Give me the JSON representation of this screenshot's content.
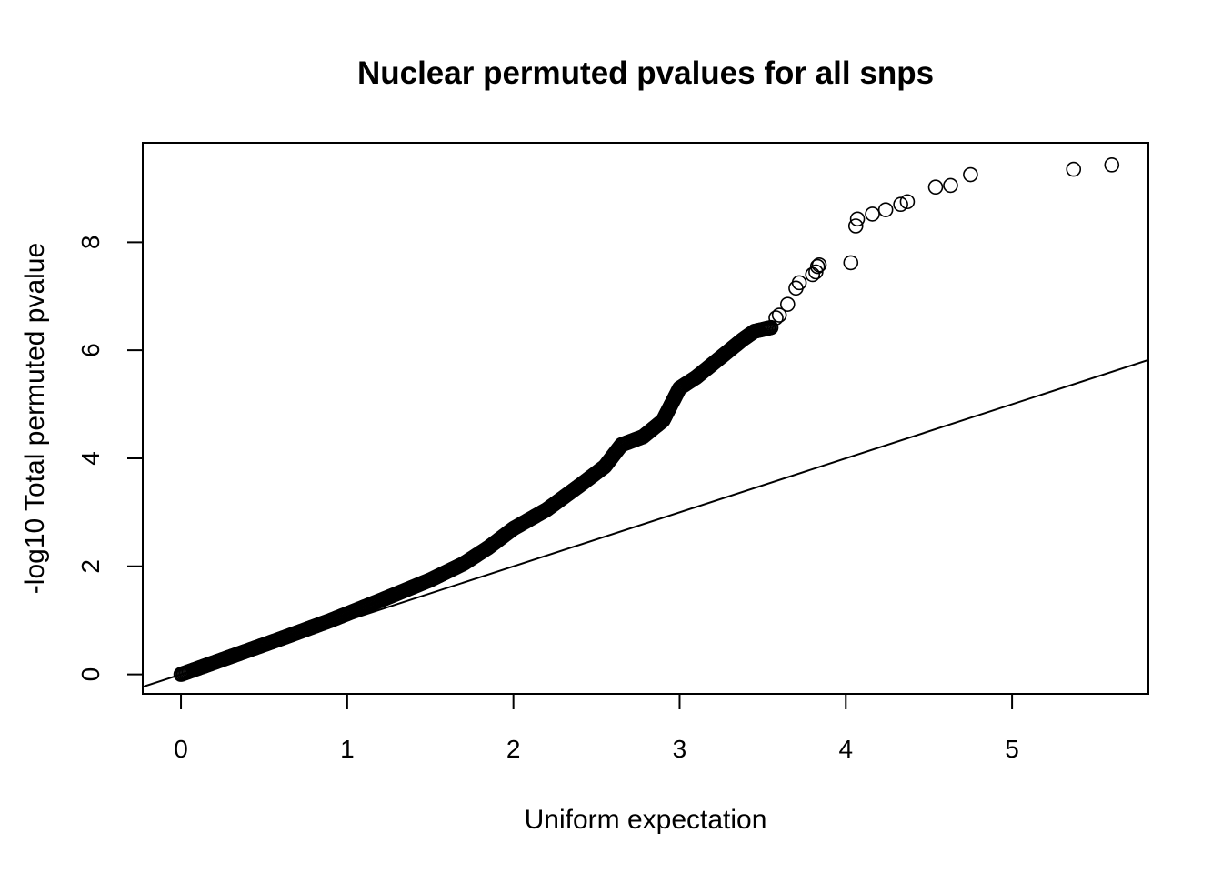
{
  "chart_data": {
    "type": "scatter",
    "title": "Nuclear permuted pvalues for all snps",
    "xlabel": "Uniform expectation",
    "ylabel": "-log10 Total permuted pvalue",
    "xlim": [
      -0.23,
      5.82
    ],
    "ylim": [
      -0.36,
      9.84
    ],
    "x_ticks": [
      0,
      1,
      2,
      3,
      4,
      5
    ],
    "y_ticks": [
      0,
      2,
      4,
      6,
      8
    ],
    "grid": false,
    "legend": "none",
    "reference_line": {
      "slope": 1,
      "intercept": 0
    },
    "curve_nodes": [
      [
        0.0,
        0.0
      ],
      [
        0.3,
        0.33
      ],
      [
        0.6,
        0.66
      ],
      [
        0.9,
        1.0
      ],
      [
        1.2,
        1.37
      ],
      [
        1.5,
        1.75
      ],
      [
        1.7,
        2.05
      ],
      [
        1.85,
        2.35
      ],
      [
        2.0,
        2.7
      ],
      [
        2.2,
        3.05
      ],
      [
        2.4,
        3.5
      ],
      [
        2.55,
        3.85
      ],
      [
        2.65,
        4.25
      ],
      [
        2.78,
        4.4
      ],
      [
        2.9,
        4.7
      ],
      [
        3.0,
        5.3
      ],
      [
        3.1,
        5.5
      ],
      [
        3.2,
        5.75
      ],
      [
        3.3,
        6.0
      ],
      [
        3.38,
        6.2
      ],
      [
        3.45,
        6.35
      ],
      [
        3.55,
        6.42
      ]
    ],
    "outliers": [
      [
        3.58,
        6.6
      ],
      [
        3.6,
        6.65
      ],
      [
        3.65,
        6.85
      ],
      [
        3.7,
        7.15
      ],
      [
        3.72,
        7.25
      ],
      [
        3.8,
        7.4
      ],
      [
        3.82,
        7.45
      ],
      [
        3.83,
        7.55
      ],
      [
        3.84,
        7.58
      ],
      [
        4.03,
        7.62
      ],
      [
        4.06,
        8.3
      ],
      [
        4.07,
        8.43
      ],
      [
        4.16,
        8.52
      ],
      [
        4.24,
        8.6
      ],
      [
        4.33,
        8.7
      ],
      [
        4.37,
        8.75
      ],
      [
        4.54,
        9.02
      ],
      [
        4.63,
        9.05
      ],
      [
        4.75,
        9.25
      ],
      [
        5.37,
        9.35
      ],
      [
        5.6,
        9.43
      ]
    ]
  }
}
